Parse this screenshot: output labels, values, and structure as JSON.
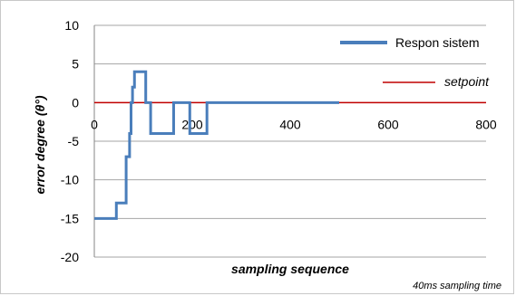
{
  "chart_data": {
    "type": "line",
    "title": "",
    "xlabel": "sampling sequence",
    "ylabel": "error degree (θ°)",
    "xlim": [
      0,
      800
    ],
    "ylim": [
      -20,
      10
    ],
    "x_ticks": [
      "0",
      "200",
      "400",
      "600",
      "800"
    ],
    "y_ticks": [
      "10",
      "5",
      "0",
      "-5",
      "-10",
      "-15",
      "-20"
    ],
    "grid": "horizontal",
    "legend_position": "top-right",
    "note": "40ms sampling time",
    "series": [
      {
        "name": "Respon sistem",
        "color": "#4a7ebb",
        "x": [
          0,
          45,
          45,
          65,
          65,
          72,
          72,
          75,
          75,
          78,
          78,
          82,
          82,
          85,
          85,
          105,
          105,
          115,
          115,
          162,
          162,
          190,
          190,
          195,
          195,
          230,
          230,
          500
        ],
        "y": [
          -15,
          -15,
          -13,
          -13,
          -7,
          -7,
          -4,
          -4,
          0,
          0,
          2,
          2,
          4,
          4,
          4,
          4,
          0,
          0,
          -4,
          -4,
          0,
          0,
          0,
          0,
          -4,
          -4,
          0,
          0
        ]
      },
      {
        "name": "setpoint",
        "color": "#c00000",
        "x": [
          0,
          800
        ],
        "y": [
          0,
          0
        ]
      }
    ]
  }
}
